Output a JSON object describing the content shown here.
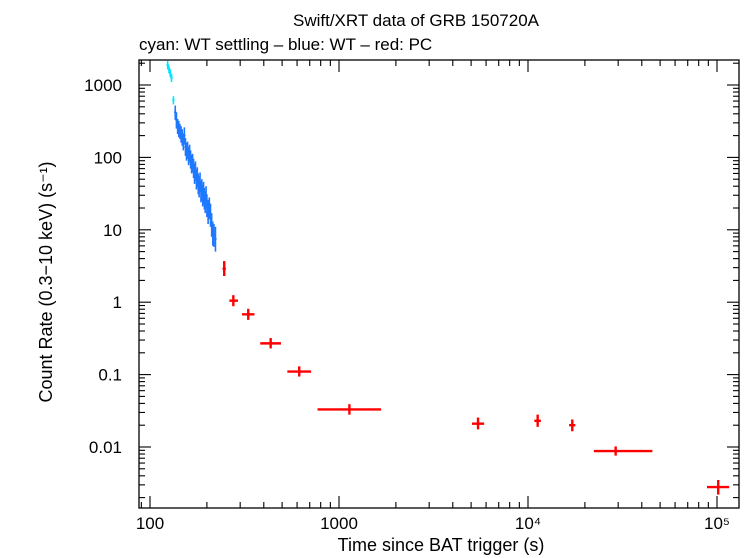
{
  "chart_data": {
    "type": "scatter",
    "title": "Swift/XRT data of GRB 150720A",
    "subtitle": "cyan: WT settling – blue: WT – red: PC",
    "xlabel": "Time since BAT trigger (s)",
    "ylabel": "Count Rate (0.3−10 keV) (s⁻¹)",
    "x_scale": "log",
    "y_scale": "log",
    "xlim": [
      85,
      150000
    ],
    "ylim": [
      0.0015,
      2500
    ],
    "x_ticks": [
      {
        "value": 100,
        "label": "100"
      },
      {
        "value": 1000,
        "label": "1000"
      },
      {
        "value": 10000,
        "label": "10⁴"
      },
      {
        "value": 100000,
        "label": "10⁵"
      }
    ],
    "y_ticks": [
      {
        "value": 1000,
        "label": "1000"
      },
      {
        "value": 100,
        "label": "100"
      },
      {
        "value": 10,
        "label": "10"
      },
      {
        "value": 1,
        "label": "1"
      },
      {
        "value": 0.1,
        "label": "0.1"
      },
      {
        "value": 0.01,
        "label": "0.01"
      }
    ],
    "series": [
      {
        "name": "WT settling",
        "color": "#00e5ff",
        "points": [
          {
            "x": 124,
            "y": 1900,
            "ylo": 1650,
            "yhi": 2150
          },
          {
            "x": 126,
            "y": 1650,
            "ylo": 1450,
            "yhi": 1850
          },
          {
            "x": 128,
            "y": 1450,
            "ylo": 1280,
            "yhi": 1650
          },
          {
            "x": 130,
            "y": 1250,
            "ylo": 1100,
            "yhi": 1420
          },
          {
            "x": 133,
            "y": 620,
            "ylo": 540,
            "yhi": 700
          }
        ]
      },
      {
        "name": "WT",
        "color": "#1e78ff",
        "points": [
          {
            "x": 136,
            "y": 420,
            "ylo": 330,
            "yhi": 520
          },
          {
            "x": 138,
            "y": 330,
            "ylo": 250,
            "yhi": 420
          },
          {
            "x": 140,
            "y": 270,
            "ylo": 210,
            "yhi": 340
          },
          {
            "x": 142,
            "y": 250,
            "ylo": 190,
            "yhi": 320
          },
          {
            "x": 144,
            "y": 230,
            "ylo": 180,
            "yhi": 290
          },
          {
            "x": 146,
            "y": 210,
            "ylo": 160,
            "yhi": 270
          },
          {
            "x": 148,
            "y": 190,
            "ylo": 145,
            "yhi": 245
          },
          {
            "x": 150,
            "y": 165,
            "ylo": 125,
            "yhi": 215
          },
          {
            "x": 152,
            "y": 200,
            "ylo": 150,
            "yhi": 260
          },
          {
            "x": 154,
            "y": 140,
            "ylo": 105,
            "yhi": 185
          },
          {
            "x": 156,
            "y": 120,
            "ylo": 90,
            "yhi": 160
          },
          {
            "x": 158,
            "y": 125,
            "ylo": 95,
            "yhi": 165
          },
          {
            "x": 160,
            "y": 105,
            "ylo": 78,
            "yhi": 140
          },
          {
            "x": 162,
            "y": 115,
            "ylo": 85,
            "yhi": 150
          },
          {
            "x": 164,
            "y": 95,
            "ylo": 70,
            "yhi": 125
          },
          {
            "x": 166,
            "y": 80,
            "ylo": 60,
            "yhi": 108
          },
          {
            "x": 168,
            "y": 85,
            "ylo": 62,
            "yhi": 112
          },
          {
            "x": 170,
            "y": 72,
            "ylo": 52,
            "yhi": 96
          },
          {
            "x": 172,
            "y": 60,
            "ylo": 43,
            "yhi": 82
          },
          {
            "x": 174,
            "y": 65,
            "ylo": 47,
            "yhi": 88
          },
          {
            "x": 176,
            "y": 50,
            "ylo": 36,
            "yhi": 68
          },
          {
            "x": 178,
            "y": 54,
            "ylo": 39,
            "yhi": 73
          },
          {
            "x": 180,
            "y": 44,
            "ylo": 31,
            "yhi": 60
          },
          {
            "x": 182,
            "y": 40,
            "ylo": 28,
            "yhi": 55
          },
          {
            "x": 184,
            "y": 46,
            "ylo": 33,
            "yhi": 62
          },
          {
            "x": 186,
            "y": 34,
            "ylo": 24,
            "yhi": 47
          },
          {
            "x": 188,
            "y": 36,
            "ylo": 25,
            "yhi": 50
          },
          {
            "x": 190,
            "y": 30,
            "ylo": 21,
            "yhi": 42
          },
          {
            "x": 192,
            "y": 33,
            "ylo": 23,
            "yhi": 46
          },
          {
            "x": 194,
            "y": 27,
            "ylo": 19,
            "yhi": 38
          },
          {
            "x": 196,
            "y": 24,
            "ylo": 17,
            "yhi": 34
          },
          {
            "x": 198,
            "y": 29,
            "ylo": 20,
            "yhi": 40
          },
          {
            "x": 200,
            "y": 22,
            "ylo": 15,
            "yhi": 31
          },
          {
            "x": 203,
            "y": 18,
            "ylo": 12,
            "yhi": 26
          },
          {
            "x": 206,
            "y": 20,
            "ylo": 14,
            "yhi": 28
          },
          {
            "x": 209,
            "y": 16,
            "ylo": 11,
            "yhi": 23
          },
          {
            "x": 212,
            "y": 12,
            "ylo": 8,
            "yhi": 17
          },
          {
            "x": 215,
            "y": 9,
            "ylo": 6,
            "yhi": 13
          },
          {
            "x": 218,
            "y": 8.5,
            "ylo": 5.8,
            "yhi": 12
          },
          {
            "x": 222,
            "y": 7.5,
            "ylo": 5,
            "yhi": 11
          }
        ]
      },
      {
        "name": "PC",
        "color": "#ff0000",
        "points": [
          {
            "x": 247,
            "xlo": 242,
            "xhi": 252,
            "y": 2.9,
            "ylo": 2.3,
            "yhi": 3.7
          },
          {
            "x": 276,
            "xlo": 263,
            "xhi": 292,
            "y": 1.05,
            "ylo": 0.88,
            "yhi": 1.25
          },
          {
            "x": 331,
            "xlo": 307,
            "xhi": 357,
            "y": 0.68,
            "ylo": 0.57,
            "yhi": 0.81
          },
          {
            "x": 435,
            "xlo": 383,
            "xhi": 493,
            "y": 0.27,
            "ylo": 0.23,
            "yhi": 0.32
          },
          {
            "x": 616,
            "xlo": 533,
            "xhi": 712,
            "y": 0.11,
            "ylo": 0.094,
            "yhi": 0.13
          },
          {
            "x": 1135,
            "xlo": 770,
            "xhi": 1670,
            "y": 0.033,
            "ylo": 0.028,
            "yhi": 0.039
          },
          {
            "x": 5440,
            "xlo": 5050,
            "xhi": 5860,
            "y": 0.021,
            "ylo": 0.0175,
            "yhi": 0.0255
          },
          {
            "x": 11250,
            "xlo": 10800,
            "xhi": 11700,
            "y": 0.023,
            "ylo": 0.019,
            "yhi": 0.028
          },
          {
            "x": 17150,
            "xlo": 16500,
            "xhi": 17800,
            "y": 0.02,
            "ylo": 0.0165,
            "yhi": 0.024
          },
          {
            "x": 29100,
            "xlo": 22300,
            "xhi": 45500,
            "y": 0.0088,
            "ylo": 0.0076,
            "yhi": 0.0102
          },
          {
            "x": 101500,
            "xlo": 88500,
            "xhi": 116000,
            "y": 0.0028,
            "ylo": 0.0022,
            "yhi": 0.0035
          }
        ]
      }
    ]
  }
}
